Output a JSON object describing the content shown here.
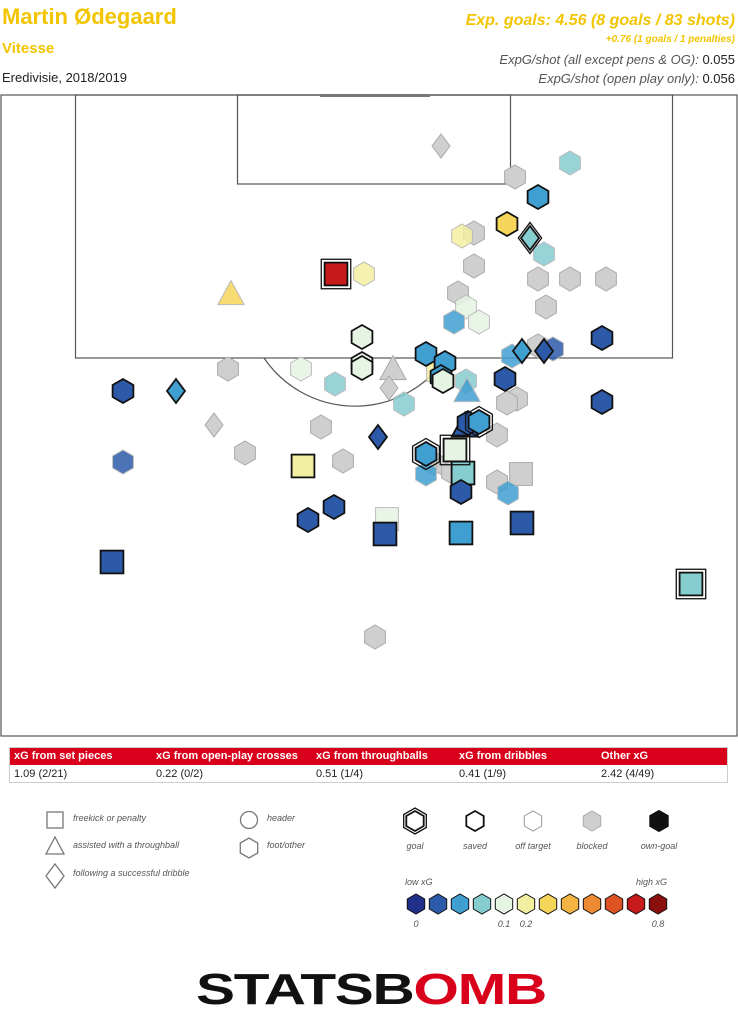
{
  "header": {
    "player": "Martin Ødegaard",
    "team": "Vitesse",
    "competition": "Eredivisie, 2018/2019",
    "xg_title": "Exp. goals: 4.56 (8 goals / 83 shots)",
    "xg_sub": "+0.76 (1 goals / 1 penalties)",
    "xg_shot_all_label": "ExpG/shot (all except pens & OG):",
    "xg_shot_all_value": "0.055",
    "xg_shot_open_label": "ExpG/shot (open play only):",
    "xg_shot_open_value": "0.056"
  },
  "breakdown": [
    {
      "label": "xG from set pieces",
      "value": "1.09 (2/21)"
    },
    {
      "label": "xG from open-play crosses",
      "value": "0.22 (0/2)"
    },
    {
      "label": "xG from throughballs",
      "value": "0.51 (1/4)"
    },
    {
      "label": "xG from dribbles",
      "value": "0.41 (1/9)"
    },
    {
      "label": "Other xG",
      "value": "2.42 (4/49)"
    }
  ],
  "legend": {
    "shapes": [
      {
        "shape": "square",
        "label": "freekick or penalty"
      },
      {
        "shape": "triangle",
        "label": "assisted with a throughball"
      },
      {
        "shape": "diamond",
        "label": "following a successful dribble"
      },
      {
        "shape": "circle",
        "label": "header"
      },
      {
        "shape": "hexagon",
        "label": "foot/other"
      }
    ],
    "outcomes": [
      {
        "key": "goal",
        "label": "goal"
      },
      {
        "key": "saved",
        "label": "saved"
      },
      {
        "key": "off",
        "label": "off target"
      },
      {
        "key": "blocked",
        "label": "blocked"
      },
      {
        "key": "own",
        "label": "own-goal"
      }
    ],
    "scale": {
      "low_label": "low xG",
      "high_label": "high xG",
      "colors": [
        "#1f2f8a",
        "#2d5aa8",
        "#3f9fd1",
        "#86cdd0",
        "#e5f4e3",
        "#f2f0a0",
        "#f5d65a",
        "#f3b444",
        "#ec8b33",
        "#dd5324",
        "#c81a1a",
        "#8a1010"
      ],
      "ticks": [
        {
          "idx": 0,
          "label": "0"
        },
        {
          "idx": 4,
          "label": "0.1"
        },
        {
          "idx": 5,
          "label": "0.2"
        },
        {
          "idx": 11,
          "label": "0.8"
        }
      ]
    }
  },
  "logo": {
    "text_left": "STATSB",
    "text_o": "O",
    "text_right": "MB"
  },
  "chart_data": {
    "type": "scatter",
    "title": "",
    "xlabel": "",
    "ylabel": "",
    "units": "yards from goal line (y) and from pitch centre (x)",
    "xlim": [
      -36.9,
      36.9
    ],
    "ylim": [
      0,
      64
    ],
    "shots": [
      {
        "x": 7.2,
        "y": 5.1,
        "shape": "diamond",
        "xg": 0.01,
        "outcome": "blocked"
      },
      {
        "x": 20.1,
        "y": 6.8,
        "shape": "hexagon",
        "xg": 0.045,
        "outcome": "off"
      },
      {
        "x": 14.6,
        "y": 8.2,
        "shape": "hexagon",
        "xg": 0.01,
        "outcome": "blocked"
      },
      {
        "x": 16.9,
        "y": 10.2,
        "shape": "hexagon",
        "xg": 0.04,
        "outcome": "saved"
      },
      {
        "x": 13.8,
        "y": 12.9,
        "shape": "hexagon",
        "xg": 0.3,
        "outcome": "saved"
      },
      {
        "x": 9.3,
        "y": 14.1,
        "shape": "hexagon",
        "xg": 0.16,
        "outcome": "off"
      },
      {
        "x": 16.1,
        "y": 14.3,
        "shape": "diamond",
        "xg": 0.05,
        "outcome": "goal"
      },
      {
        "x": 10.5,
        "y": 13.8,
        "shape": "hexagon",
        "xg": 0.01,
        "outcome": "blocked"
      },
      {
        "x": 17.5,
        "y": 15.9,
        "shape": "hexagon",
        "xg": 0.05,
        "outcome": "off"
      },
      {
        "x": -3.3,
        "y": 17.9,
        "shape": "square",
        "xg": 0.76,
        "outcome": "goal"
      },
      {
        "x": -0.5,
        "y": 17.9,
        "shape": "hexagon",
        "xg": 0.2,
        "outcome": "off"
      },
      {
        "x": 10.5,
        "y": 17.1,
        "shape": "hexagon",
        "xg": 0.01,
        "outcome": "blocked"
      },
      {
        "x": 20.1,
        "y": 18.4,
        "shape": "hexagon",
        "xg": 0.01,
        "outcome": "blocked"
      },
      {
        "x": 23.7,
        "y": 18.4,
        "shape": "hexagon",
        "xg": 0.01,
        "outcome": "blocked"
      },
      {
        "x": 16.9,
        "y": 18.4,
        "shape": "hexagon",
        "xg": 0.01,
        "outcome": "blocked"
      },
      {
        "x": -13.8,
        "y": 20.0,
        "shape": "triangle",
        "xg": 0.25,
        "outcome": "off"
      },
      {
        "x": 8.9,
        "y": 19.8,
        "shape": "hexagon",
        "xg": 0.01,
        "outcome": "blocked"
      },
      {
        "x": 9.7,
        "y": 21.2,
        "shape": "hexagon",
        "xg": 0.12,
        "outcome": "off"
      },
      {
        "x": 8.5,
        "y": 22.7,
        "shape": "hexagon",
        "xg": 0.04,
        "outcome": "off"
      },
      {
        "x": 11.0,
        "y": 22.7,
        "shape": "hexagon",
        "xg": 0.09,
        "outcome": "off"
      },
      {
        "x": 17.7,
        "y": 21.2,
        "shape": "hexagon",
        "xg": 0.01,
        "outcome": "blocked"
      },
      {
        "x": 23.3,
        "y": 24.3,
        "shape": "hexagon",
        "xg": 0.025,
        "outcome": "saved"
      },
      {
        "x": -0.7,
        "y": 24.2,
        "shape": "hexagon",
        "xg": 0.1,
        "outcome": "saved"
      },
      {
        "x": 16.9,
        "y": 25.1,
        "shape": "hexagon",
        "xg": 0.01,
        "outcome": "blocked"
      },
      {
        "x": 17.5,
        "y": 25.6,
        "shape": "diamond",
        "xg": 0.025,
        "outcome": "saved"
      },
      {
        "x": 15.3,
        "y": 25.6,
        "shape": "diamond",
        "xg": 0.04,
        "outcome": "saved"
      },
      {
        "x": 14.3,
        "y": 26.1,
        "shape": "hexagon",
        "xg": 0.04,
        "outcome": "off"
      },
      {
        "x": 18.4,
        "y": 25.4,
        "shape": "hexagon",
        "xg": 0.025,
        "outcome": "off"
      },
      {
        "x": 5.7,
        "y": 25.9,
        "shape": "hexagon",
        "xg": 0.04,
        "outcome": "saved"
      },
      {
        "x": 7.6,
        "y": 26.8,
        "shape": "hexagon",
        "xg": 0.04,
        "outcome": "saved"
      },
      {
        "x": 6.9,
        "y": 27.5,
        "shape": "square",
        "xg": 0.2,
        "outcome": "off"
      },
      {
        "x": 2.4,
        "y": 27.5,
        "shape": "triangle",
        "xg": 0.01,
        "outcome": "blocked"
      },
      {
        "x": -0.7,
        "y": 26.9,
        "shape": "hexagon",
        "xg": 0.09,
        "outcome": "saved"
      },
      {
        "x": -0.7,
        "y": 27.3,
        "shape": "hexagon",
        "xg": 0.09,
        "outcome": "saved"
      },
      {
        "x": -6.8,
        "y": 27.4,
        "shape": "hexagon",
        "xg": 0.1,
        "outcome": "off"
      },
      {
        "x": -14.1,
        "y": 27.4,
        "shape": "hexagon",
        "xg": 0.01,
        "outcome": "blocked"
      },
      {
        "x": 7.2,
        "y": 28.2,
        "shape": "hexagon",
        "xg": 0.04,
        "outcome": "saved"
      },
      {
        "x": 7.4,
        "y": 28.6,
        "shape": "hexagon",
        "xg": 0.09,
        "outcome": "saved"
      },
      {
        "x": 9.7,
        "y": 28.6,
        "shape": "hexagon",
        "xg": 0.05,
        "outcome": "off"
      },
      {
        "x": 13.6,
        "y": 28.4,
        "shape": "hexagon",
        "xg": 0.025,
        "outcome": "saved"
      },
      {
        "x": 9.8,
        "y": 29.7,
        "shape": "triangle",
        "xg": 0.04,
        "outcome": "off"
      },
      {
        "x": -3.4,
        "y": 28.9,
        "shape": "hexagon",
        "xg": 0.05,
        "outcome": "off"
      },
      {
        "x": -24.6,
        "y": 29.6,
        "shape": "hexagon",
        "xg": 0.025,
        "outcome": "saved"
      },
      {
        "x": -19.3,
        "y": 29.6,
        "shape": "diamond",
        "xg": 0.04,
        "outcome": "saved"
      },
      {
        "x": 14.8,
        "y": 30.4,
        "shape": "hexagon",
        "xg": 0.01,
        "outcome": "blocked"
      },
      {
        "x": 13.8,
        "y": 30.8,
        "shape": "hexagon",
        "xg": 0.01,
        "outcome": "blocked"
      },
      {
        "x": 2.0,
        "y": 29.3,
        "shape": "diamond",
        "xg": 0.01,
        "outcome": "blocked"
      },
      {
        "x": 3.5,
        "y": 30.9,
        "shape": "hexagon",
        "xg": 0.05,
        "outcome": "off"
      },
      {
        "x": 23.3,
        "y": 30.7,
        "shape": "hexagon",
        "xg": 0.025,
        "outcome": "saved"
      },
      {
        "x": -15.5,
        "y": 33.0,
        "shape": "diamond",
        "xg": 0.01,
        "outcome": "blocked"
      },
      {
        "x": -4.8,
        "y": 33.2,
        "shape": "hexagon",
        "xg": 0.01,
        "outcome": "blocked"
      },
      {
        "x": 9.6,
        "y": 33.2,
        "shape": "triangle",
        "xg": 0.025,
        "outcome": "saved"
      },
      {
        "x": 9.9,
        "y": 32.8,
        "shape": "hexagon",
        "xg": 0.025,
        "outcome": "saved"
      },
      {
        "x": 11.0,
        "y": 32.7,
        "shape": "hexagon",
        "xg": 0.04,
        "outcome": "goal"
      },
      {
        "x": 12.8,
        "y": 34.0,
        "shape": "hexagon",
        "xg": 0.01,
        "outcome": "blocked"
      },
      {
        "x": 0.9,
        "y": 34.2,
        "shape": "diamond",
        "xg": 0.025,
        "outcome": "saved"
      },
      {
        "x": -12.4,
        "y": 35.8,
        "shape": "hexagon",
        "xg": 0.01,
        "outcome": "blocked"
      },
      {
        "x": 5.7,
        "y": 35.9,
        "shape": "hexagon",
        "xg": 0.04,
        "outcome": "goal"
      },
      {
        "x": 8.6,
        "y": 35.5,
        "shape": "square",
        "xg": 0.09,
        "outcome": "goal"
      },
      {
        "x": 6.4,
        "y": 36.8,
        "shape": "hexagon",
        "xg": 0.01,
        "outcome": "blocked"
      },
      {
        "x": 7.8,
        "y": 37.1,
        "shape": "hexagon",
        "xg": 0.01,
        "outcome": "blocked"
      },
      {
        "x": 8.3,
        "y": 37.7,
        "shape": "hexagon",
        "xg": 0.01,
        "outcome": "blocked"
      },
      {
        "x": -24.6,
        "y": 36.7,
        "shape": "hexagon",
        "xg": 0.03,
        "outcome": "off"
      },
      {
        "x": -2.6,
        "y": 36.6,
        "shape": "hexagon",
        "xg": 0.01,
        "outcome": "blocked"
      },
      {
        "x": -6.6,
        "y": 37.1,
        "shape": "square",
        "xg": 0.2,
        "outcome": "saved"
      },
      {
        "x": 9.4,
        "y": 37.8,
        "shape": "square",
        "xg": 0.05,
        "outcome": "saved"
      },
      {
        "x": 5.7,
        "y": 37.9,
        "shape": "hexagon",
        "xg": 0.04,
        "outcome": "off"
      },
      {
        "x": 15.2,
        "y": 37.9,
        "shape": "square",
        "xg": 0.01,
        "outcome": "blocked"
      },
      {
        "x": 12.8,
        "y": 38.7,
        "shape": "hexagon",
        "xg": 0.01,
        "outcome": "blocked"
      },
      {
        "x": 9.2,
        "y": 39.7,
        "shape": "hexagon",
        "xg": 0.025,
        "outcome": "saved"
      },
      {
        "x": 13.9,
        "y": 39.8,
        "shape": "hexagon",
        "xg": 0.04,
        "outcome": "off"
      },
      {
        "x": -3.5,
        "y": 41.2,
        "shape": "hexagon",
        "xg": 0.025,
        "outcome": "saved"
      },
      {
        "x": -6.1,
        "y": 42.5,
        "shape": "hexagon",
        "xg": 0.025,
        "outcome": "saved"
      },
      {
        "x": 1.8,
        "y": 42.4,
        "shape": "square",
        "xg": 0.085,
        "outcome": "off"
      },
      {
        "x": 1.6,
        "y": 43.9,
        "shape": "square",
        "xg": 0.025,
        "outcome": "saved"
      },
      {
        "x": 9.2,
        "y": 43.8,
        "shape": "square",
        "xg": 0.04,
        "outcome": "saved"
      },
      {
        "x": 15.3,
        "y": 42.8,
        "shape": "square",
        "xg": 0.025,
        "outcome": "saved"
      },
      {
        "x": -25.7,
        "y": 46.7,
        "shape": "square",
        "xg": 0.025,
        "outcome": "saved"
      },
      {
        "x": 32.2,
        "y": 48.9,
        "shape": "square",
        "xg": 0.05,
        "outcome": "goal"
      },
      {
        "x": 0.6,
        "y": 54.2,
        "shape": "hexagon",
        "xg": 0.01,
        "outcome": "blocked"
      }
    ]
  }
}
